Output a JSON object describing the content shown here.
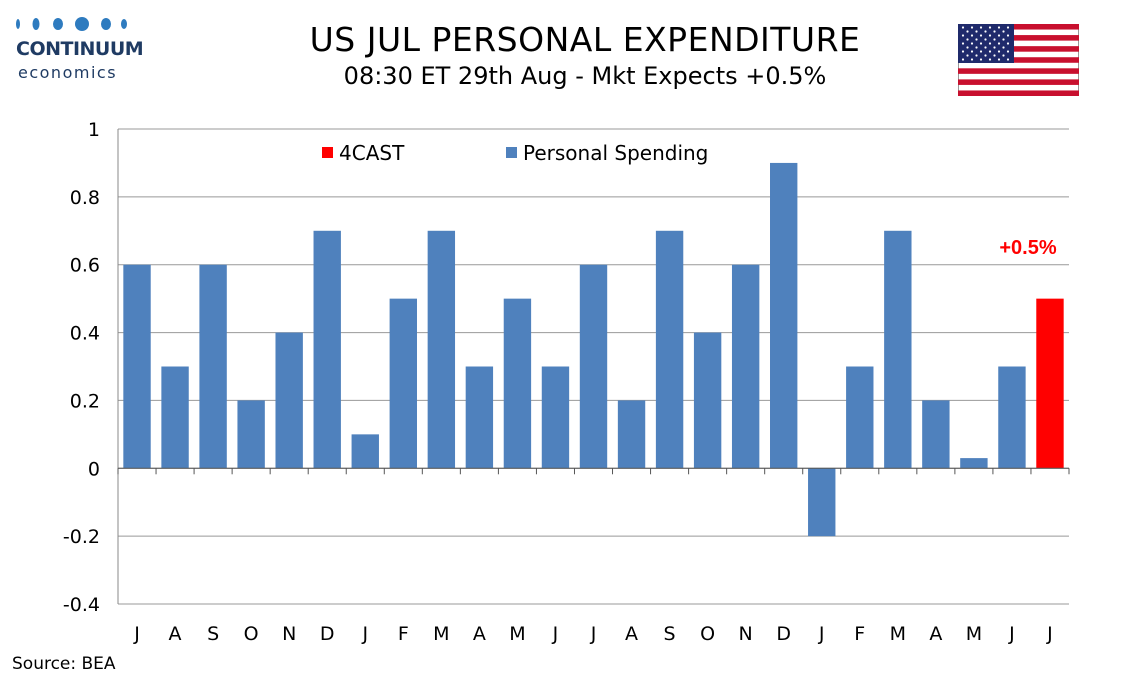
{
  "logo": {
    "name": "CONTINUUM",
    "sub": "economics",
    "color": "#1f3b63"
  },
  "title": "US JUL PERSONAL EXPENDITURE",
  "subtitle": "08:30 ET 29th Aug - Mkt Expects +0.5%",
  "source": "Source: BEA",
  "flag_icon": "us-flag-icon",
  "chart_data": {
    "type": "bar",
    "categories": [
      "J",
      "A",
      "S",
      "O",
      "N",
      "D",
      "J",
      "F",
      "M",
      "A",
      "M",
      "J",
      "J",
      "A",
      "S",
      "O",
      "N",
      "D",
      "J",
      "F",
      "M",
      "A",
      "M",
      "J",
      "J"
    ],
    "series": [
      {
        "name": "Personal Spending",
        "color": "#4f81bd",
        "values": [
          0.6,
          0.3,
          0.6,
          0.2,
          0.4,
          0.7,
          0.1,
          0.5,
          0.7,
          0.3,
          0.5,
          0.3,
          0.6,
          0.2,
          0.7,
          0.4,
          0.6,
          0.9,
          -0.2,
          0.3,
          0.7,
          0.2,
          0.03,
          0.3,
          null
        ]
      },
      {
        "name": "4CAST",
        "color": "#ff0000",
        "values": [
          null,
          null,
          null,
          null,
          null,
          null,
          null,
          null,
          null,
          null,
          null,
          null,
          null,
          null,
          null,
          null,
          null,
          null,
          null,
          null,
          null,
          null,
          null,
          null,
          0.5
        ]
      }
    ],
    "legend": [
      "4CAST",
      "Personal Spending"
    ],
    "legend_position": "top",
    "ylim": [
      -0.4,
      1
    ],
    "yticks": [
      -0.4,
      -0.2,
      0,
      0.2,
      0.4,
      0.6,
      0.8,
      1
    ],
    "ytick_labels": [
      "-0.4",
      "-0.2",
      "0",
      "0.2",
      "0.4",
      "0.6",
      "0.8",
      "1"
    ],
    "grid": true,
    "annotation": {
      "text": "+0.5%",
      "category_index": 24,
      "color": "#ff0000"
    }
  }
}
